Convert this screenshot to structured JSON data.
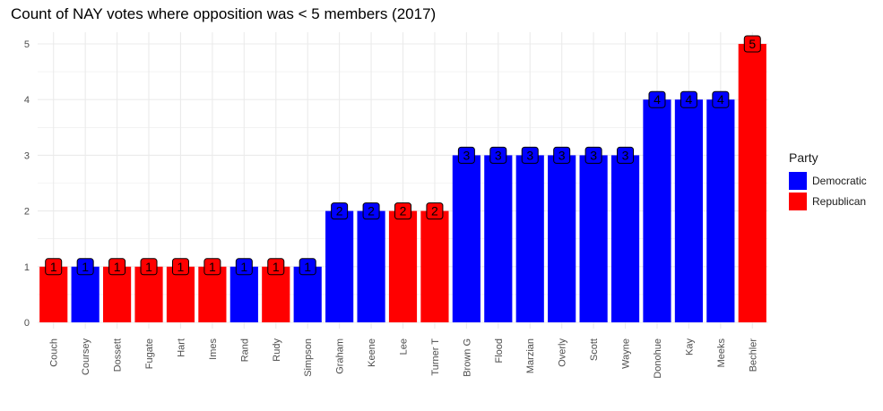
{
  "chart_data": {
    "type": "bar",
    "title": "Count of NAY votes where opposition was < 5 members (2017)",
    "xlabel": "",
    "ylabel": "",
    "ylim": [
      0,
      5
    ],
    "yticks": [
      "0",
      "1",
      "2",
      "3",
      "4",
      "5"
    ],
    "grid": true,
    "legend_position": "right",
    "colors": {
      "Democratic": "#0000ff",
      "Republican": "#ff0000"
    },
    "categories": [
      "Couch",
      "Coursey",
      "Dossett",
      "Fugate",
      "Hart",
      "Imes",
      "Rand",
      "Rudy",
      "Simpson",
      "Graham",
      "Keene",
      "Lee",
      "Turner T",
      "Brown G",
      "Flood",
      "Marzian",
      "Overly",
      "Scott",
      "Wayne",
      "Donohue",
      "Kay",
      "Meeks",
      "Bechler"
    ],
    "values": [
      1,
      1,
      1,
      1,
      1,
      1,
      1,
      1,
      1,
      2,
      2,
      2,
      2,
      3,
      3,
      3,
      3,
      3,
      3,
      4,
      4,
      4,
      5
    ],
    "party": [
      "Republican",
      "Democratic",
      "Republican",
      "Republican",
      "Republican",
      "Republican",
      "Democratic",
      "Republican",
      "Democratic",
      "Democratic",
      "Democratic",
      "Republican",
      "Republican",
      "Democratic",
      "Democratic",
      "Democratic",
      "Democratic",
      "Democratic",
      "Democratic",
      "Democratic",
      "Democratic",
      "Democratic",
      "Republican"
    ],
    "legend": {
      "title": "Party",
      "entries": [
        "Democratic",
        "Republican"
      ]
    }
  }
}
